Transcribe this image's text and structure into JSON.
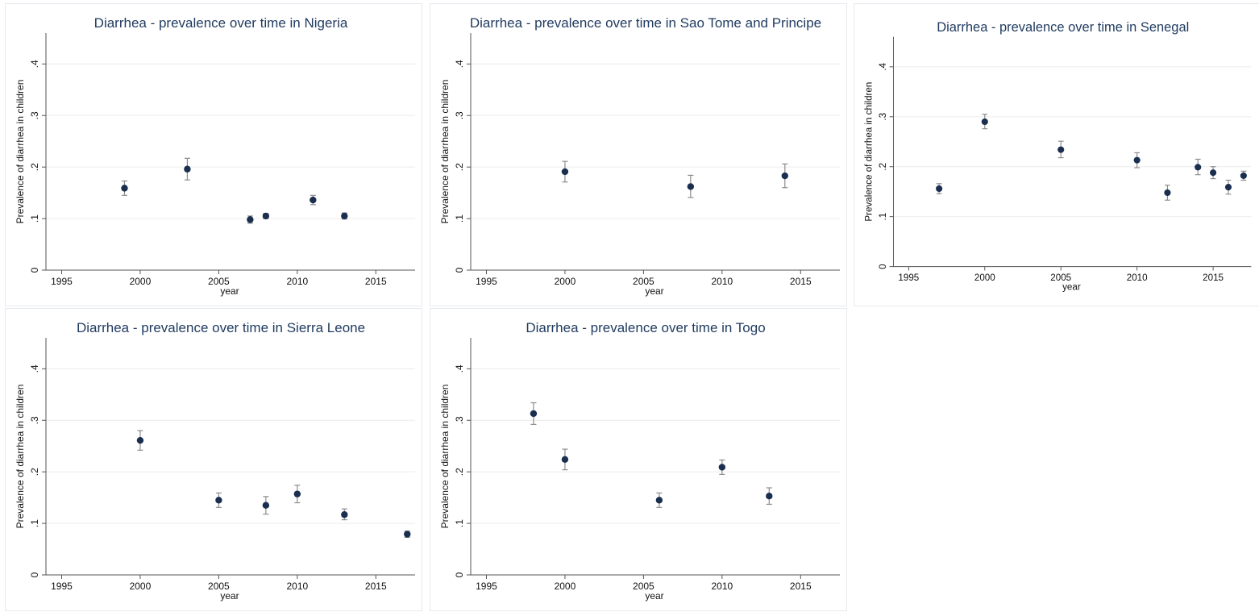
{
  "chart_data": [
    {
      "type": "scatter",
      "title": "Diarrhea - prevalence over time in Nigeria",
      "xlabel": "year",
      "ylabel": "Prevalence of diarrhea in children",
      "xlim": [
        1994,
        2017.5
      ],
      "ylim": [
        0,
        0.46
      ],
      "xticks": [
        1995,
        2000,
        2005,
        2010,
        2015
      ],
      "xtick_labels": [
        "1995",
        "2000",
        "2005",
        "2010",
        "2015"
      ],
      "yticks": [
        0,
        0.1,
        0.2,
        0.3,
        0.4
      ],
      "ytick_labels": [
        "0",
        ".1",
        ".2",
        ".3",
        ".4"
      ],
      "grid": true,
      "points": [
        {
          "x": 1999,
          "y": 0.159,
          "lo": 0.145,
          "hi": 0.173
        },
        {
          "x": 2003,
          "y": 0.196,
          "lo": 0.175,
          "hi": 0.217
        },
        {
          "x": 2007,
          "y": 0.098,
          "lo": 0.091,
          "hi": 0.105
        },
        {
          "x": 2008,
          "y": 0.105,
          "lo": 0.1,
          "hi": 0.11
        },
        {
          "x": 2011,
          "y": 0.136,
          "lo": 0.127,
          "hi": 0.145
        },
        {
          "x": 2013,
          "y": 0.105,
          "lo": 0.099,
          "hi": 0.111
        }
      ]
    },
    {
      "type": "scatter",
      "title": "Diarrhea - prevalence over time in Sao Tome and Principe",
      "xlabel": "year",
      "ylabel": "Prevalence of diarrhea in children",
      "xlim": [
        1994,
        2017.5
      ],
      "ylim": [
        0,
        0.46
      ],
      "xticks": [
        1995,
        2000,
        2005,
        2010,
        2015
      ],
      "xtick_labels": [
        "1995",
        "2000",
        "2005",
        "2010",
        "2015"
      ],
      "yticks": [
        0,
        0.1,
        0.2,
        0.3,
        0.4
      ],
      "ytick_labels": [
        "0",
        ".1",
        ".2",
        ".3",
        ".4"
      ],
      "grid": true,
      "points": [
        {
          "x": 2000,
          "y": 0.191,
          "lo": 0.171,
          "hi": 0.211
        },
        {
          "x": 2008,
          "y": 0.162,
          "lo": 0.141,
          "hi": 0.184
        },
        {
          "x": 2014,
          "y": 0.183,
          "lo": 0.16,
          "hi": 0.206
        }
      ]
    },
    {
      "type": "scatter",
      "title": "Diarrhea - prevalence over time in Senegal",
      "xlabel": "year",
      "ylabel": "Prevalence of diarrhea in children",
      "xlim": [
        1994,
        2017.5
      ],
      "ylim": [
        0,
        0.46
      ],
      "xticks": [
        1995,
        2000,
        2005,
        2010,
        2015
      ],
      "xtick_labels": [
        "1995",
        "2000",
        "2005",
        "2010",
        "2015"
      ],
      "yticks": [
        0,
        0.1,
        0.2,
        0.3,
        0.4
      ],
      "ytick_labels": [
        "0",
        ".1",
        ".2",
        ".3",
        ".4"
      ],
      "grid": true,
      "points": [
        {
          "x": 1997,
          "y": 0.156,
          "lo": 0.146,
          "hi": 0.166
        },
        {
          "x": 2000,
          "y": 0.29,
          "lo": 0.276,
          "hi": 0.305
        },
        {
          "x": 2005,
          "y": 0.234,
          "lo": 0.218,
          "hi": 0.251
        },
        {
          "x": 2010,
          "y": 0.213,
          "lo": 0.198,
          "hi": 0.228
        },
        {
          "x": 2012,
          "y": 0.148,
          "lo": 0.133,
          "hi": 0.163
        },
        {
          "x": 2014,
          "y": 0.199,
          "lo": 0.184,
          "hi": 0.215
        },
        {
          "x": 2015,
          "y": 0.188,
          "lo": 0.176,
          "hi": 0.2
        },
        {
          "x": 2016,
          "y": 0.159,
          "lo": 0.145,
          "hi": 0.173
        },
        {
          "x": 2017,
          "y": 0.182,
          "lo": 0.173,
          "hi": 0.191
        }
      ]
    },
    {
      "type": "scatter",
      "title": "Diarrhea - prevalence over time in Sierra Leone",
      "xlabel": "year",
      "ylabel": "Prevalence of diarrhea in children",
      "xlim": [
        1994,
        2017.5
      ],
      "ylim": [
        0,
        0.46
      ],
      "xticks": [
        1995,
        2000,
        2005,
        2010,
        2015
      ],
      "xtick_labels": [
        "1995",
        "2000",
        "2005",
        "2010",
        "2015"
      ],
      "yticks": [
        0,
        0.1,
        0.2,
        0.3,
        0.4
      ],
      "ytick_labels": [
        "0",
        ".1",
        ".2",
        ".3",
        ".4"
      ],
      "grid": true,
      "points": [
        {
          "x": 2000,
          "y": 0.261,
          "lo": 0.242,
          "hi": 0.28
        },
        {
          "x": 2005,
          "y": 0.145,
          "lo": 0.131,
          "hi": 0.159
        },
        {
          "x": 2008,
          "y": 0.135,
          "lo": 0.118,
          "hi": 0.152
        },
        {
          "x": 2010,
          "y": 0.157,
          "lo": 0.14,
          "hi": 0.174
        },
        {
          "x": 2013,
          "y": 0.117,
          "lo": 0.107,
          "hi": 0.128
        },
        {
          "x": 2017,
          "y": 0.079,
          "lo": 0.073,
          "hi": 0.085
        }
      ]
    },
    {
      "type": "scatter",
      "title": "Diarrhea - prevalence over time in Togo",
      "xlabel": "year",
      "ylabel": "Prevalence of diarrhea in children",
      "xlim": [
        1994,
        2017.5
      ],
      "ylim": [
        0,
        0.46
      ],
      "xticks": [
        1995,
        2000,
        2005,
        2010,
        2015
      ],
      "xtick_labels": [
        "1995",
        "2000",
        "2005",
        "2010",
        "2015"
      ],
      "yticks": [
        0,
        0.1,
        0.2,
        0.3,
        0.4
      ],
      "ytick_labels": [
        "0",
        ".1",
        ".2",
        ".3",
        ".4"
      ],
      "grid": true,
      "points": [
        {
          "x": 1998,
          "y": 0.313,
          "lo": 0.292,
          "hi": 0.334
        },
        {
          "x": 2000,
          "y": 0.224,
          "lo": 0.204,
          "hi": 0.244
        },
        {
          "x": 2006,
          "y": 0.145,
          "lo": 0.131,
          "hi": 0.159
        },
        {
          "x": 2010,
          "y": 0.209,
          "lo": 0.195,
          "hi": 0.223
        },
        {
          "x": 2013,
          "y": 0.153,
          "lo": 0.137,
          "hi": 0.169
        }
      ]
    }
  ],
  "style": {
    "marker_color": "#1a2e4f",
    "errorbar_color": "#8c8c8c",
    "grid_color": "#ececec",
    "axis_color": "#555555",
    "title_color": "#1f3a5f"
  }
}
